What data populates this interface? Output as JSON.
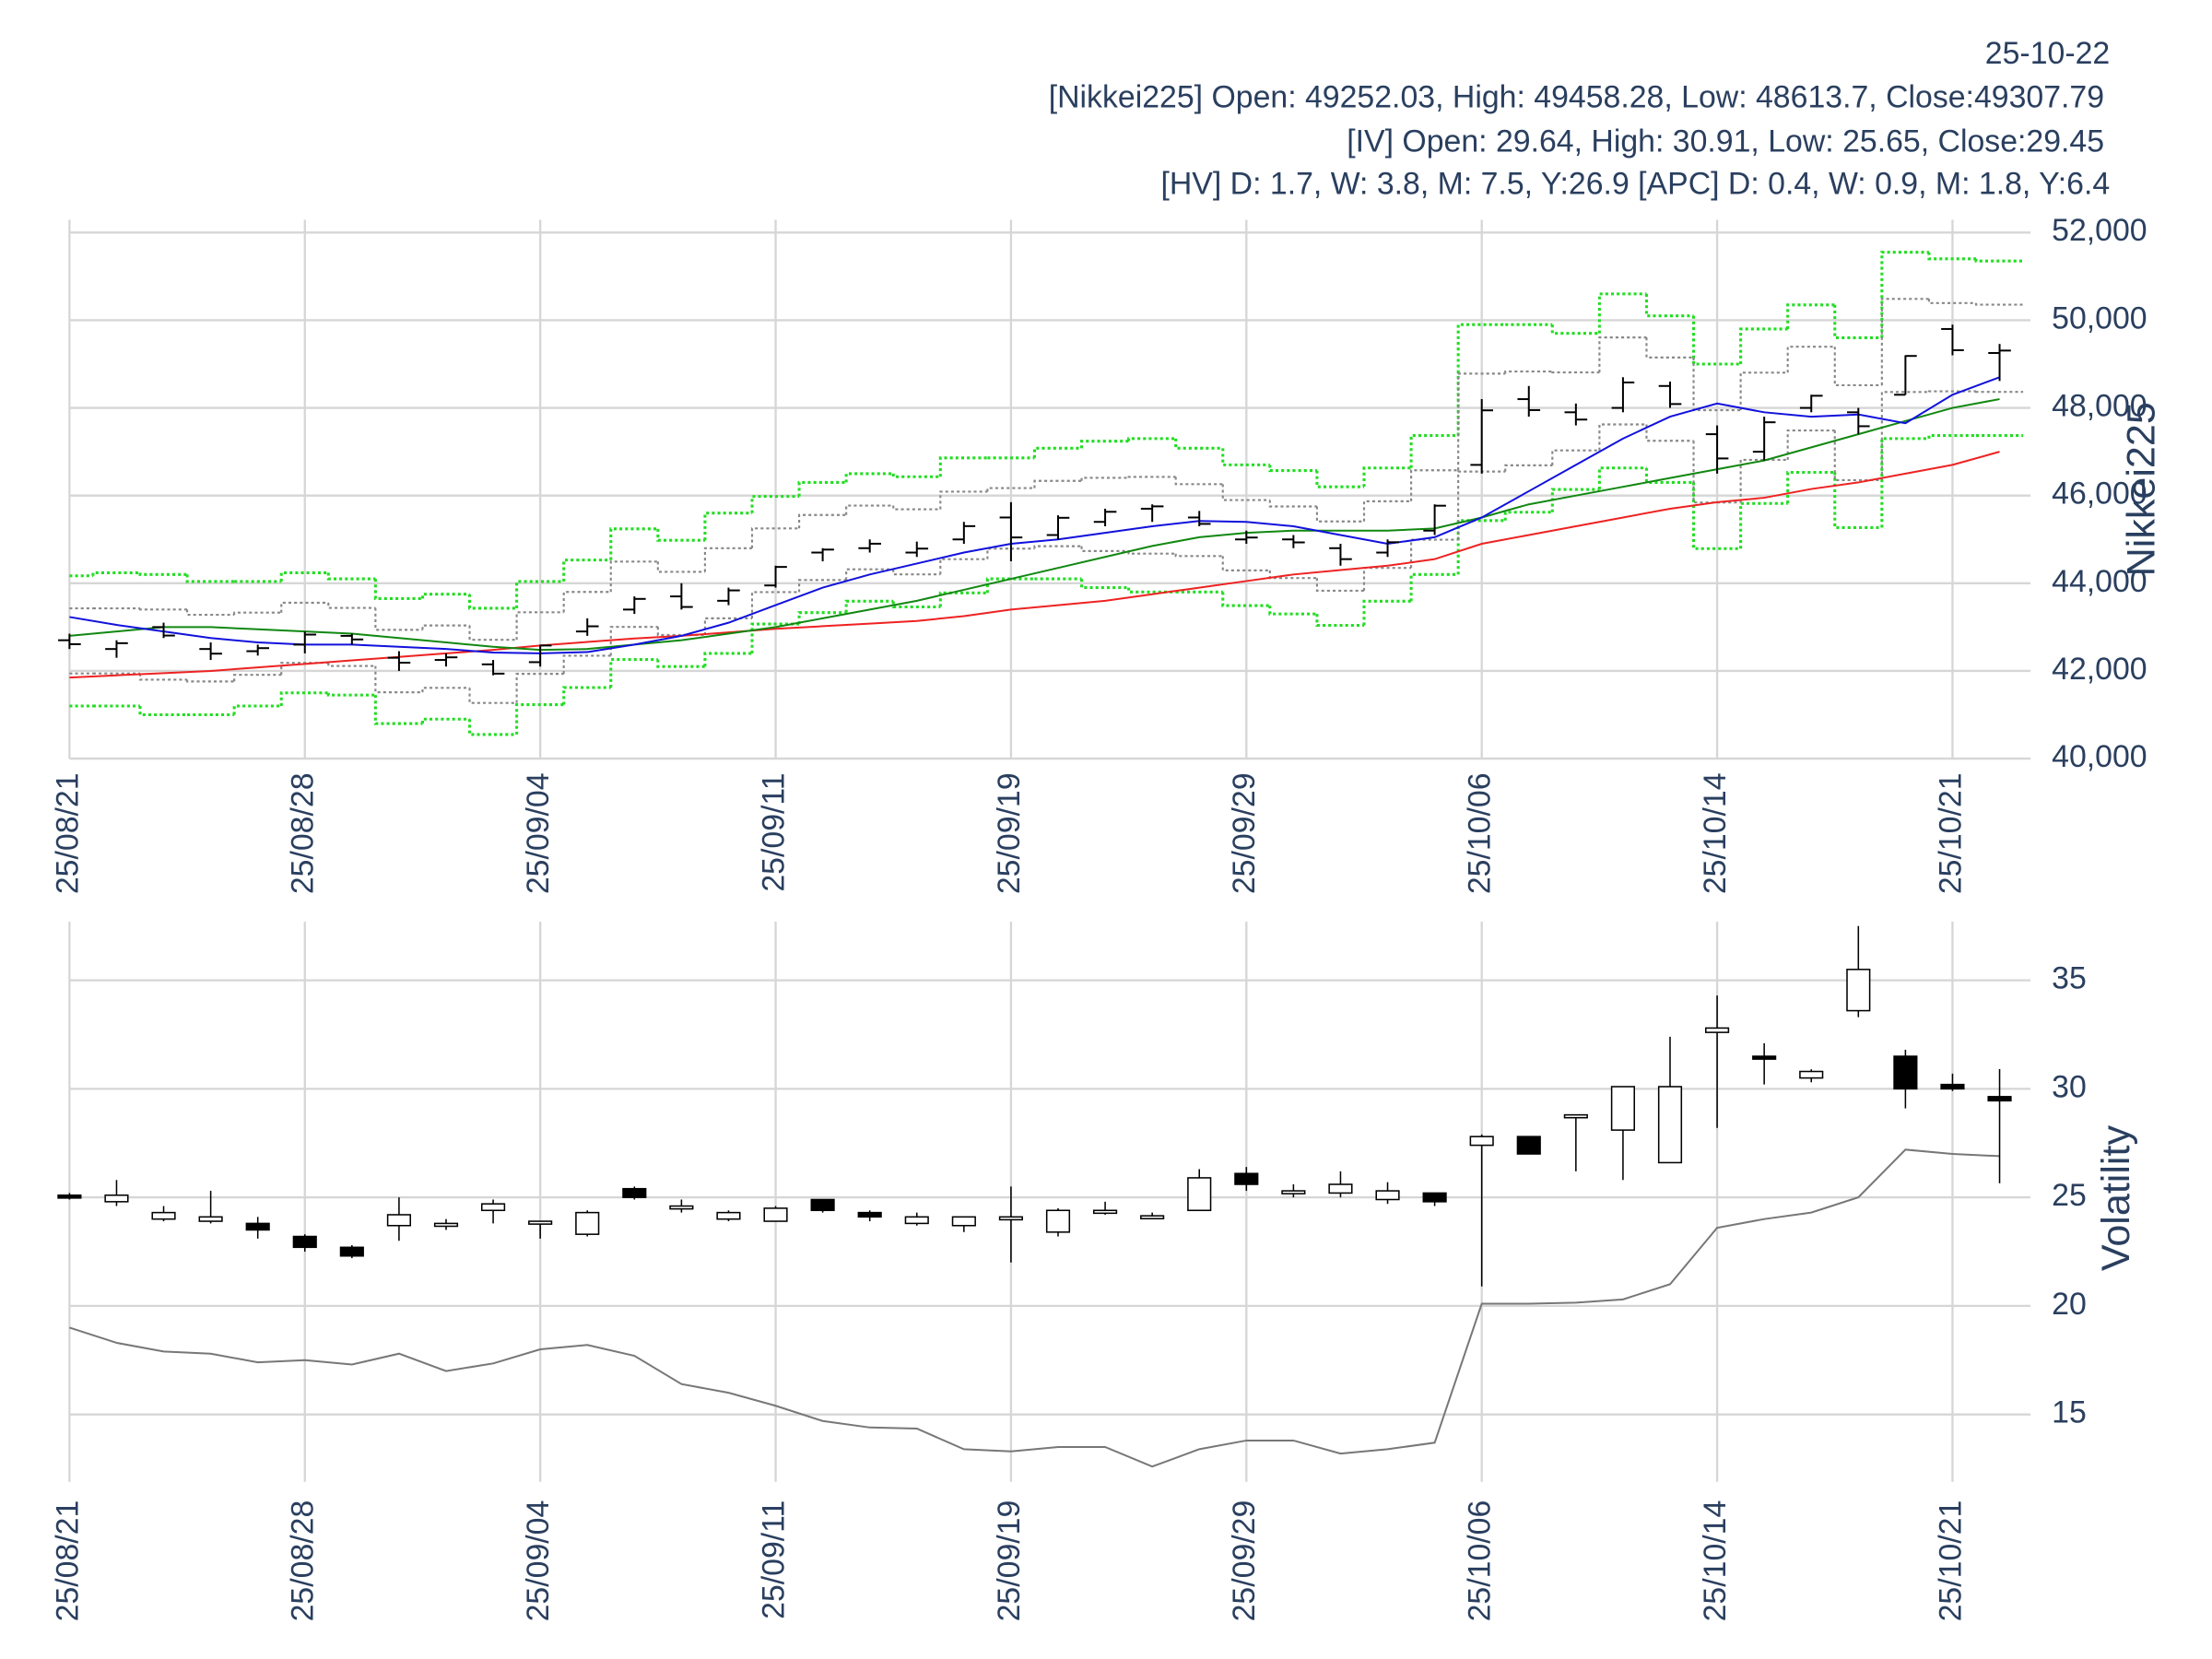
{
  "header": {
    "date": "25-10-22",
    "nikkei": "[Nikkei225] Open: 49252.03, High: 49458.28, Low: 48613.7, Close:49307.79",
    "iv": "[IV] Open: 29.64, High: 30.91, Low: 25.65, Close:29.45",
    "hv": "[HV] D: 1.7, W: 3.8, M: 7.5, Y:26.9 [APC] D: 0.4, W: 0.9, M: 1.8, Y:6.4"
  },
  "chart_data": [
    {
      "type": "ohlc",
      "y_label": "Nikkei225",
      "categories": [
        "25/08/21",
        null,
        null,
        null,
        null,
        "25/08/28",
        null,
        null,
        null,
        null,
        "25/09/04",
        null,
        null,
        null,
        null,
        "25/09/11",
        null,
        null,
        null,
        null,
        "25/09/19",
        null,
        null,
        null,
        null,
        "25/09/29",
        null,
        null,
        null,
        null,
        "25/10/06",
        null,
        null,
        null,
        null,
        "25/10/14",
        null,
        null,
        null,
        null,
        "25/10/21",
        null
      ],
      "open": [
        42700,
        42500,
        43000,
        42500,
        42450,
        42600,
        42800,
        42300,
        42250,
        42150,
        42200,
        42900,
        43400,
        43700,
        43600,
        43950,
        44700,
        44800,
        44700,
        45000,
        45500,
        45100,
        45400,
        45700,
        45500,
        45000,
        45000,
        44800,
        44700,
        45200,
        46700,
        48200,
        47900,
        48000,
        48500,
        47400,
        47000,
        48000,
        47900,
        48300,
        49800,
        49252.03
      ],
      "high": [
        42850,
        42700,
        43100,
        42650,
        42600,
        42900,
        42850,
        42450,
        42400,
        42250,
        42600,
        43200,
        43700,
        44000,
        43900,
        44400,
        44800,
        45000,
        44950,
        45400,
        45850,
        45550,
        45700,
        45800,
        45650,
        45200,
        45100,
        44900,
        45000,
        45800,
        48200,
        48500,
        48100,
        48700,
        48600,
        47600,
        47800,
        48300,
        48000,
        49200,
        49900,
        49458.28
      ],
      "low": [
        42500,
        42300,
        42750,
        42250,
        42350,
        42400,
        42600,
        42000,
        42100,
        41900,
        42100,
        42800,
        43300,
        43400,
        43500,
        43900,
        44500,
        44700,
        44600,
        44900,
        44500,
        45000,
        45300,
        45400,
        45300,
        44900,
        44800,
        44400,
        44600,
        45100,
        46500,
        47800,
        47600,
        47900,
        48000,
        46500,
        46800,
        47900,
        47400,
        48300,
        49200,
        48613.7
      ],
      "close": [
        42610,
        42633,
        42807,
        42394,
        42520,
        42829,
        42718,
        42188,
        42310,
        41938,
        42580,
        43018,
        43643,
        43459,
        43837,
        44372,
        44768,
        44902,
        44790,
        45303,
        45045,
        45493,
        45630,
        45754,
        45354,
        45043,
        44932,
        44550,
        44936,
        45769,
        47944,
        47950,
        47734,
        48580,
        48088,
        46847,
        47672,
        48277,
        47582,
        49185,
        49316,
        49307.79
      ],
      "color": "#000000",
      "bands": [
        {
          "color": "#22dd22",
          "line_style": "dotted",
          "values": [
            44170,
            44240,
            44200,
            44040,
            44040,
            44240,
            44100,
            43650,
            43750,
            43430,
            44040,
            44530,
            45240,
            44980,
            45600,
            45980,
            46300,
            46500,
            46430,
            46860,
            46860,
            47080,
            47240,
            47300,
            47080,
            46700,
            46570,
            46200,
            46630,
            47370,
            49900,
            49900,
            49700,
            50600,
            50100,
            49000,
            49800,
            50350,
            49600,
            51550,
            51400,
            51350
          ]
        },
        {
          "color": "#22dd22",
          "line_style": "dotted",
          "values": [
            41200,
            41200,
            41000,
            41000,
            41200,
            41500,
            41450,
            40800,
            40900,
            40550,
            41230,
            41620,
            42260,
            42100,
            42400,
            43070,
            43330,
            43590,
            43460,
            43780,
            44100,
            44100,
            43900,
            43800,
            43800,
            43490,
            43300,
            43040,
            43590,
            44200,
            45430,
            45620,
            46140,
            46630,
            46300,
            44790,
            45820,
            46530,
            45270,
            47300,
            47370,
            47370
          ]
        },
        {
          "color": "#888888",
          "line_style": "dotted",
          "values": [
            43427,
            43427,
            43400,
            43280,
            43330,
            43555,
            43437,
            42937,
            43037,
            42710,
            43337,
            43802,
            44495,
            44260,
            44800,
            45252,
            45557,
            45772,
            45687,
            46090,
            46170,
            46335,
            46405,
            46425,
            46260,
            45897,
            45752,
            45410,
            45870,
            46577,
            48782,
            48830,
            48810,
            49607,
            49150,
            47947,
            48805,
            49395,
            48517,
            50487,
            50392,
            50355
          ]
        },
        {
          "color": "#888888",
          "line_style": "dotted",
          "values": [
            41943,
            41943,
            41800,
            41760,
            41910,
            42185,
            42113,
            41513,
            41613,
            41270,
            41933,
            42348,
            43005,
            42820,
            43200,
            43798,
            44073,
            44318,
            44203,
            44550,
            44790,
            44845,
            44735,
            44675,
            44620,
            44293,
            44118,
            43830,
            44350,
            44993,
            46548,
            46690,
            47030,
            47623,
            47250,
            45843,
            46815,
            47485,
            46353,
            48363,
            48378,
            48365
          ]
        }
      ],
      "lines": [
        {
          "color": "#ee2222",
          "values": [
            41850,
            41900,
            41950,
            42000,
            42080,
            42160,
            42240,
            42320,
            42400,
            42480,
            42580,
            42660,
            42740,
            42800,
            42880,
            42960,
            43020,
            43080,
            43140,
            43250,
            43400,
            43500,
            43600,
            43750,
            43900,
            44050,
            44200,
            44300,
            44400,
            44550,
            44900,
            45100,
            45300,
            45500,
            45700,
            45850,
            45950,
            46150,
            46300,
            46500,
            46700,
            47000
          ]
        },
        {
          "color": "#118811",
          "values": [
            42800,
            42900,
            43000,
            43000,
            42950,
            42900,
            42850,
            42750,
            42650,
            42550,
            42480,
            42500,
            42600,
            42700,
            42850,
            43000,
            43200,
            43400,
            43600,
            43850,
            44100,
            44350,
            44600,
            44850,
            45050,
            45150,
            45200,
            45200,
            45200,
            45250,
            45500,
            45800,
            46000,
            46200,
            46400,
            46600,
            46800,
            47100,
            47400,
            47700,
            48000,
            48200
          ]
        },
        {
          "color": "#1111dd",
          "values": [
            43230,
            43050,
            42900,
            42750,
            42650,
            42600,
            42600,
            42550,
            42500,
            42420,
            42400,
            42430,
            42600,
            42800,
            43100,
            43500,
            43900,
            44200,
            44450,
            44700,
            44900,
            45000,
            45150,
            45300,
            45420,
            45400,
            45300,
            45100,
            44900,
            45050,
            45500,
            46100,
            46700,
            47300,
            47800,
            48100,
            47900,
            47800,
            47850,
            47650,
            48300,
            48700
          ]
        }
      ],
      "ylim": [
        40000,
        52000
      ],
      "yticks": [
        {
          "value": 40000,
          "label": "40,000"
        },
        {
          "value": 42000,
          "label": "42,000"
        },
        {
          "value": 44000,
          "label": "44,000"
        },
        {
          "value": 46000,
          "label": "46,000"
        },
        {
          "value": 48000,
          "label": "48,000"
        },
        {
          "value": 50000,
          "label": "50,000"
        },
        {
          "value": 52000,
          "label": "52,000"
        }
      ],
      "grid": true
    },
    {
      "type": "candlestick",
      "y_label": "Volatility",
      "categories": [
        "25/08/21",
        null,
        null,
        null,
        null,
        "25/08/28",
        null,
        null,
        null,
        null,
        "25/09/04",
        null,
        null,
        null,
        null,
        "25/09/11",
        null,
        null,
        null,
        null,
        "25/09/19",
        null,
        null,
        null,
        null,
        "25/09/29",
        null,
        null,
        null,
        null,
        "25/10/06",
        null,
        null,
        null,
        null,
        "25/10/14",
        null,
        null,
        null,
        null,
        "25/10/21",
        null
      ],
      "open": [
        25.1,
        24.8,
        24.0,
        23.9,
        23.8,
        23.2,
        22.7,
        23.7,
        23.7,
        24.4,
        23.85,
        23.3,
        25.4,
        24.5,
        24.0,
        23.9,
        24.9,
        24.3,
        23.8,
        23.7,
        24.0,
        23.4,
        24.3,
        24.1,
        24.4,
        26.1,
        25.2,
        25.2,
        24.9,
        25.2,
        27.4,
        27.8,
        28.7,
        28.1,
        26.6,
        32.6,
        31.5,
        30.5,
        33.6,
        31.5,
        30.2,
        29.64
      ],
      "high": [
        25.2,
        25.8,
        24.6,
        25.3,
        24.1,
        23.3,
        22.8,
        25.0,
        24.0,
        24.9,
        23.9,
        24.4,
        25.5,
        24.9,
        24.4,
        24.6,
        24.9,
        24.4,
        24.3,
        24.1,
        25.5,
        24.5,
        24.8,
        24.3,
        26.3,
        26.4,
        25.6,
        26.2,
        25.7,
        25.2,
        27.9,
        27.8,
        28.8,
        30.1,
        32.4,
        34.3,
        32.1,
        30.9,
        37.5,
        31.8,
        30.7,
        30.91
      ],
      "low": [
        24.9,
        24.6,
        23.9,
        23.8,
        23.1,
        22.5,
        22.2,
        23.0,
        23.5,
        23.8,
        23.1,
        23.2,
        24.9,
        24.3,
        23.9,
        23.9,
        24.3,
        23.9,
        23.7,
        23.4,
        22.0,
        23.2,
        24.2,
        24.0,
        24.4,
        25.3,
        25.0,
        25.0,
        24.7,
        24.6,
        20.9,
        27.0,
        26.2,
        25.8,
        26.6,
        28.2,
        30.2,
        30.3,
        33.3,
        29.1,
        29.9,
        25.65
      ],
      "close": [
        25.0,
        25.1,
        24.3,
        24.1,
        23.5,
        22.7,
        22.3,
        24.2,
        23.8,
        24.7,
        23.9,
        24.3,
        25.0,
        24.6,
        24.3,
        24.5,
        24.4,
        24.1,
        24.1,
        24.1,
        24.1,
        24.4,
        24.4,
        24.15,
        25.9,
        25.6,
        25.3,
        25.6,
        25.3,
        24.8,
        27.8,
        27.0,
        28.8,
        30.1,
        30.1,
        32.8,
        31.4,
        30.8,
        35.5,
        30.0,
        30.0,
        29.45
      ],
      "increasing_color": "#ffffff",
      "decreasing_color": "#000000",
      "color": "#000000",
      "lines": [
        {
          "color": "#777777",
          "values": [
            19.0,
            18.3,
            17.9,
            17.8,
            17.4,
            17.5,
            17.3,
            17.8,
            17.0,
            17.35,
            18.0,
            18.2,
            17.7,
            16.4,
            16.0,
            15.4,
            14.7,
            14.4,
            14.35,
            13.4,
            13.3,
            13.5,
            13.5,
            12.6,
            13.4,
            13.8,
            13.8,
            13.2,
            13.4,
            13.7,
            20.1,
            20.1,
            20.15,
            20.3,
            21.0,
            23.6,
            24.0,
            24.3,
            25.0,
            27.2,
            27.0,
            26.9
          ]
        }
      ],
      "ylim": [
        11.9,
        37.7
      ],
      "yticks": [
        15,
        20,
        25,
        30,
        35
      ],
      "grid": true
    }
  ]
}
